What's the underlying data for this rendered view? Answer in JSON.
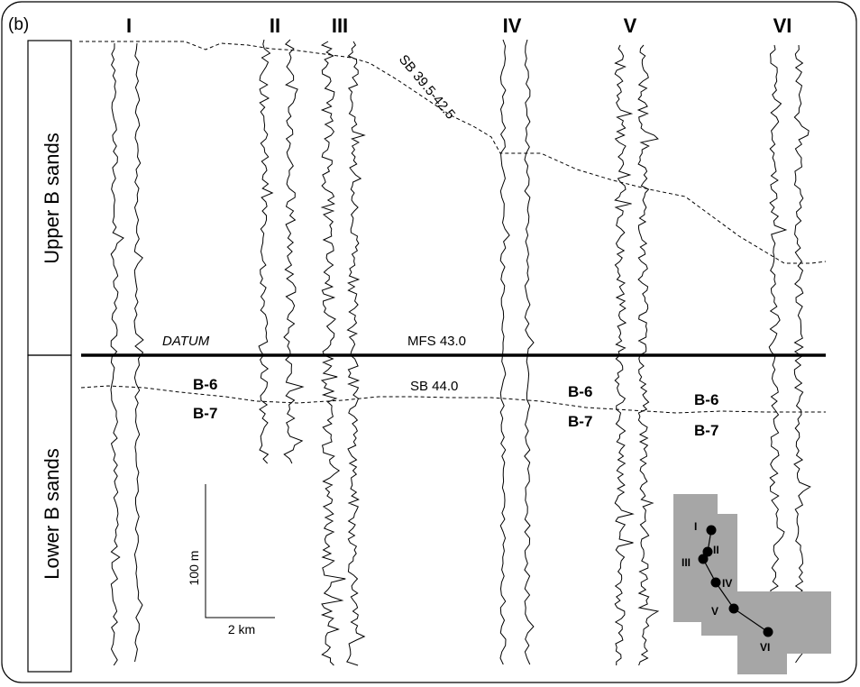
{
  "panel_label": "(b)",
  "zones": {
    "upper": "Upper B sands",
    "lower": "Lower B sands"
  },
  "wells": [
    "I",
    "II",
    "III",
    "IV",
    "V",
    "VI"
  ],
  "surfaces": {
    "sb_upper": "SB 39.5-42.5",
    "mfs": "MFS 43.0",
    "datum": "DATUM",
    "sb_lower": "SB 44.0"
  },
  "sand_units": {
    "upper": "B-6",
    "lower": "B-7"
  },
  "scale": {
    "vertical": "100 m",
    "horizontal": "2 km"
  },
  "location_map": {
    "fill_color": "#a6a6a6",
    "well_labels": [
      "I",
      "II",
      "III",
      "IV",
      "V",
      "VI"
    ]
  }
}
